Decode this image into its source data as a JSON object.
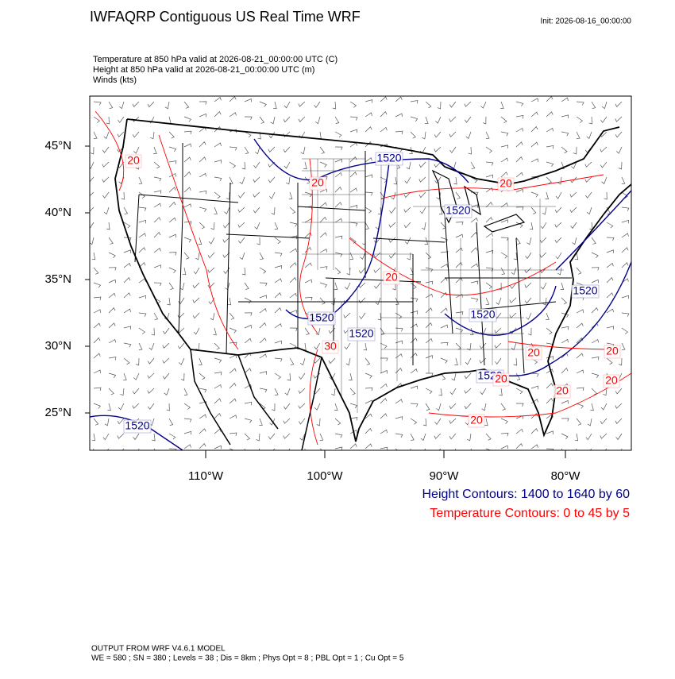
{
  "header": {
    "title": "IWFAQRP Contiguous US Real Time WRF",
    "init": "Init: 2026-08-16_00:00:00"
  },
  "fields": [
    "Temperature at 850 hPa valid at 2026-08-21_00:00:00 UTC   (C)",
    "Height at 850 hPa valid at 2026-08-21_00:00:00 UTC   (m)",
    "Winds   (kts)"
  ],
  "map": {
    "lat_labels": [
      "45°N",
      "40°N",
      "35°N",
      "30°N",
      "25°N"
    ],
    "lon_labels": [
      "110°W",
      "100°W",
      "90°W",
      "80°W"
    ],
    "height_labels": [
      "1520",
      "1520",
      "1520",
      "1520",
      "1520",
      "1520",
      "1520",
      "1520"
    ],
    "temperature_labels": [
      "20",
      "20",
      "20",
      "20",
      "30",
      "20",
      "20",
      "20",
      "20",
      "20",
      "20"
    ]
  },
  "legend": {
    "height": "Height Contours: 1400 to 1640 by 60",
    "temperature": "Temperature Contours: 0 to 45 by 5"
  },
  "footer": {
    "model": "OUTPUT FROM WRF V4.6.1 MODEL",
    "settings": "WE = 580 ; SN = 380 ; Levels = 38 ; Dis = 8km ; Phys Opt = 8 ; PBL Opt = 1 ; Cu Opt = 5"
  }
}
